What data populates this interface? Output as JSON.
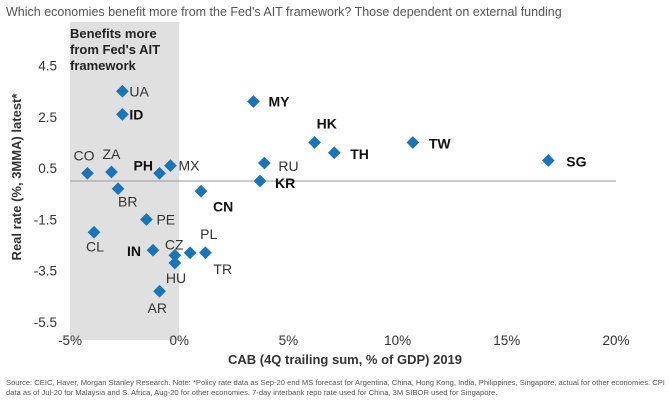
{
  "title": "Which economies benefit more from the Fed's AIT framework? Those dependent on external funding",
  "source": "Source: CEIC, Haver, Morgan Stanley Research. Note: *Policy rate data as Sep-20 end MS forecast for Argentina, China, Hong Kong, India, Philippines, Singapore, actual for other economies. CPI data as of Jul-20 for Malaysia and S. Africa, Aug-20 for other economies. 7-day interbank repo rate used for China, 3M SIBOR used for Singapore.",
  "chart_data": {
    "type": "scatter",
    "xlabel": "CAB (4Q trailing sum, % of GDP) 2019",
    "ylabel": "Real rate (%, 3MMA) latest*",
    "xlim": [
      -5,
      20
    ],
    "ylim": [
      -5.5,
      5.5
    ],
    "x_ticks": [
      "-5%",
      "0%",
      "5%",
      "10%",
      "15%",
      "20%"
    ],
    "y_ticks": [
      "4.5",
      "2.5",
      "0.5",
      "-1.5",
      "-3.5",
      "-5.5"
    ],
    "x_tick_values": [
      -5,
      0,
      5,
      10,
      15,
      20
    ],
    "y_tick_values": [
      4.5,
      2.5,
      0.5,
      -1.5,
      -3.5,
      -5.5
    ],
    "reference_line_y": 0,
    "shaded_region": {
      "x_from": -5,
      "x_to": 0,
      "label_lines": [
        "Benefits more",
        "from Fed's AIT",
        "framework"
      ]
    },
    "marker_color": "#1a74b8",
    "shade_color": "#e0e0e0",
    "points": [
      {
        "label": "UA",
        "x": -2.6,
        "y": 3.5,
        "bold": false
      },
      {
        "label": "ID",
        "x": -2.6,
        "y": 2.6,
        "bold": true
      },
      {
        "label": "CO",
        "x": -4.2,
        "y": 0.3,
        "bold": false
      },
      {
        "label": "ZA",
        "x": -3.1,
        "y": 0.35,
        "bold": false
      },
      {
        "label": "PH",
        "x": -0.9,
        "y": 0.3,
        "bold": true
      },
      {
        "label": "MX",
        "x": -0.4,
        "y": 0.6,
        "bold": false
      },
      {
        "label": "BR",
        "x": -2.8,
        "y": -0.3,
        "bold": false
      },
      {
        "label": "PE",
        "x": -1.5,
        "y": -1.5,
        "bold": false
      },
      {
        "label": "CL",
        "x": -3.9,
        "y": -2.0,
        "bold": false
      },
      {
        "label": "IN",
        "x": -1.2,
        "y": -2.7,
        "bold": true
      },
      {
        "label": "CZ",
        "x": -0.2,
        "y": -2.9,
        "bold": false
      },
      {
        "label": "PL",
        "x": 0.5,
        "y": -2.8,
        "bold": false
      },
      {
        "label": "TR",
        "x": 1.2,
        "y": -2.8,
        "bold": false
      },
      {
        "label": "HU",
        "x": -0.2,
        "y": -3.2,
        "bold": false
      },
      {
        "label": "AR",
        "x": -0.9,
        "y": -4.3,
        "bold": false
      },
      {
        "label": "CN",
        "x": 1.0,
        "y": -0.4,
        "bold": true
      },
      {
        "label": "MY",
        "x": 3.4,
        "y": 3.1,
        "bold": true
      },
      {
        "label": "RU",
        "x": 3.9,
        "y": 0.7,
        "bold": false
      },
      {
        "label": "KR",
        "x": 3.7,
        "y": 0.0,
        "bold": true
      },
      {
        "label": "HK",
        "x": 6.2,
        "y": 1.5,
        "bold": true
      },
      {
        "label": "TH",
        "x": 7.1,
        "y": 1.1,
        "bold": true
      },
      {
        "label": "TW",
        "x": 10.7,
        "y": 1.5,
        "bold": true
      },
      {
        "label": "SG",
        "x": 16.9,
        "y": 0.8,
        "bold": true
      }
    ]
  }
}
